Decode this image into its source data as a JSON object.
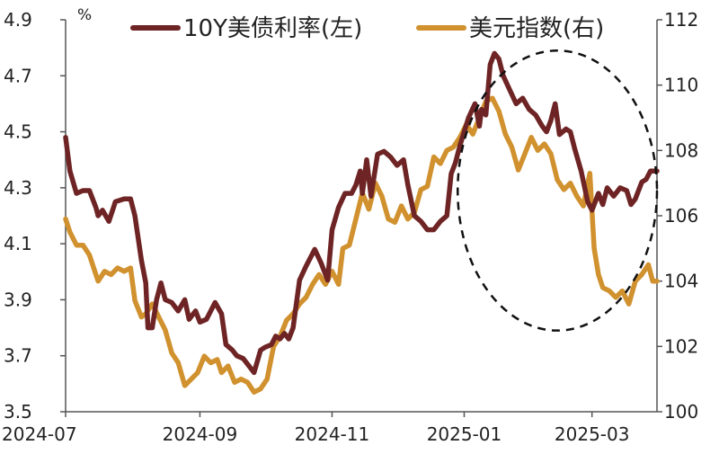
{
  "chart_data": {
    "type": "line",
    "title": "",
    "left_axis": {
      "unit_label": "%",
      "ylim": [
        3.5,
        4.9
      ],
      "ticks": [
        "3.5",
        "3.7",
        "3.9",
        "4.1",
        "4.3",
        "4.5",
        "4.7",
        "4.9"
      ]
    },
    "right_axis": {
      "ylim": [
        100,
        112
      ],
      "ticks": [
        "100",
        "102",
        "104",
        "106",
        "108",
        "110",
        "112"
      ]
    },
    "x_axis": {
      "range": [
        "2024-07-01",
        "2025-03-31"
      ],
      "ticks": [
        {
          "label": "2024-07",
          "date": "2024-07-01"
        },
        {
          "label": "2024-09",
          "date": "2024-09-01"
        },
        {
          "label": "2024-11",
          "date": "2024-11-01"
        },
        {
          "label": "2025-01",
          "date": "2025-01-01"
        },
        {
          "label": "2025-03",
          "date": "2025-03-01"
        }
      ]
    },
    "grid": false,
    "legend": "top",
    "series": [
      {
        "name": "10Y美债利率(左)",
        "axis": "left",
        "color": "#6e2424",
        "points": [
          [
            "2024-07-01",
            4.48
          ],
          [
            "2024-07-03",
            4.36
          ],
          [
            "2024-07-06",
            4.28
          ],
          [
            "2024-07-09",
            4.29
          ],
          [
            "2024-07-12",
            4.29
          ],
          [
            "2024-07-15",
            4.23
          ],
          [
            "2024-07-16",
            4.2
          ],
          [
            "2024-07-18",
            4.22
          ],
          [
            "2024-07-21",
            4.18
          ],
          [
            "2024-07-24",
            4.25
          ],
          [
            "2024-07-28",
            4.26
          ],
          [
            "2024-07-31",
            4.26
          ],
          [
            "2024-08-02",
            4.2
          ],
          [
            "2024-08-05",
            4.04
          ],
          [
            "2024-08-07",
            3.96
          ],
          [
            "2024-08-08",
            3.8
          ],
          [
            "2024-08-10",
            3.8
          ],
          [
            "2024-08-12",
            3.9
          ],
          [
            "2024-08-14",
            3.96
          ],
          [
            "2024-08-16",
            3.9
          ],
          [
            "2024-08-19",
            3.89
          ],
          [
            "2024-08-22",
            3.86
          ],
          [
            "2024-08-25",
            3.9
          ],
          [
            "2024-08-27",
            3.83
          ],
          [
            "2024-08-30",
            3.86
          ],
          [
            "2024-09-01",
            3.82
          ],
          [
            "2024-09-04",
            3.83
          ],
          [
            "2024-09-06",
            3.86
          ],
          [
            "2024-09-08",
            3.89
          ],
          [
            "2024-09-11",
            3.85
          ],
          [
            "2024-09-13",
            3.74
          ],
          [
            "2024-09-16",
            3.72
          ],
          [
            "2024-09-18",
            3.7
          ],
          [
            "2024-09-21",
            3.69
          ],
          [
            "2024-09-24",
            3.66
          ],
          [
            "2024-09-26",
            3.64
          ],
          [
            "2024-09-29",
            3.72
          ],
          [
            "2024-10-01",
            3.73
          ],
          [
            "2024-10-04",
            3.74
          ],
          [
            "2024-10-06",
            3.77
          ],
          [
            "2024-10-08",
            3.76
          ],
          [
            "2024-10-10",
            3.78
          ],
          [
            "2024-10-12",
            3.76
          ],
          [
            "2024-10-14",
            3.8
          ],
          [
            "2024-10-17",
            3.97
          ],
          [
            "2024-10-20",
            4.02
          ],
          [
            "2024-10-24",
            4.08
          ],
          [
            "2024-10-27",
            4.03
          ],
          [
            "2024-10-30",
            3.97
          ],
          [
            "2024-11-01",
            4.15
          ],
          [
            "2024-11-04",
            4.23
          ],
          [
            "2024-11-07",
            4.28
          ],
          [
            "2024-11-10",
            4.28
          ],
          [
            "2024-11-12",
            4.31
          ],
          [
            "2024-11-14",
            4.36
          ],
          [
            "2024-11-15",
            4.28
          ],
          [
            "2024-11-17",
            4.4
          ],
          [
            "2024-11-19",
            4.27
          ],
          [
            "2024-11-22",
            4.42
          ],
          [
            "2024-11-25",
            4.43
          ],
          [
            "2024-11-28",
            4.41
          ],
          [
            "2024-12-01",
            4.38
          ],
          [
            "2024-12-04",
            4.4
          ],
          [
            "2024-12-06",
            4.31
          ],
          [
            "2024-12-09",
            4.2
          ],
          [
            "2024-12-12",
            4.18
          ],
          [
            "2024-12-15",
            4.15
          ],
          [
            "2024-12-18",
            4.15
          ],
          [
            "2024-12-21",
            4.18
          ],
          [
            "2024-12-24",
            4.2
          ],
          [
            "2024-12-26",
            4.35
          ],
          [
            "2024-12-28",
            4.39
          ],
          [
            "2024-12-30",
            4.45
          ],
          [
            "2025-01-01",
            4.5
          ],
          [
            "2025-01-03",
            4.55
          ],
          [
            "2025-01-06",
            4.6
          ],
          [
            "2025-01-08",
            4.52
          ],
          [
            "2025-01-09",
            4.58
          ],
          [
            "2025-01-11",
            4.56
          ],
          [
            "2025-01-13",
            4.74
          ],
          [
            "2025-01-15",
            4.78
          ],
          [
            "2025-01-17",
            4.76
          ],
          [
            "2025-01-19",
            4.7
          ],
          [
            "2025-01-22",
            4.65
          ],
          [
            "2025-01-25",
            4.6
          ],
          [
            "2025-01-28",
            4.62
          ],
          [
            "2025-01-31",
            4.58
          ],
          [
            "2025-02-03",
            4.56
          ],
          [
            "2025-02-06",
            4.52
          ],
          [
            "2025-02-08",
            4.5
          ],
          [
            "2025-02-10",
            4.54
          ],
          [
            "2025-02-12",
            4.6
          ],
          [
            "2025-02-14",
            4.49
          ],
          [
            "2025-02-17",
            4.51
          ],
          [
            "2025-02-19",
            4.5
          ],
          [
            "2025-02-21",
            4.44
          ],
          [
            "2025-02-24",
            4.36
          ],
          [
            "2025-02-27",
            4.25
          ],
          [
            "2025-03-01",
            4.22
          ],
          [
            "2025-03-04",
            4.28
          ],
          [
            "2025-03-06",
            4.24
          ],
          [
            "2025-03-08",
            4.3
          ],
          [
            "2025-03-11",
            4.27
          ],
          [
            "2025-03-14",
            4.3
          ],
          [
            "2025-03-17",
            4.29
          ],
          [
            "2025-03-19",
            4.24
          ],
          [
            "2025-03-21",
            4.26
          ],
          [
            "2025-03-24",
            4.32
          ],
          [
            "2025-03-26",
            4.33
          ],
          [
            "2025-03-28",
            4.36
          ],
          [
            "2025-03-31",
            4.36
          ]
        ]
      },
      {
        "name": "美元指数(右)",
        "axis": "right",
        "color": "#d0912e",
        "points": [
          [
            "2024-07-01",
            105.9
          ],
          [
            "2024-07-03",
            105.5
          ],
          [
            "2024-07-06",
            105.1
          ],
          [
            "2024-07-09",
            105.1
          ],
          [
            "2024-07-12",
            104.8
          ],
          [
            "2024-07-15",
            104.2
          ],
          [
            "2024-07-16",
            104.0
          ],
          [
            "2024-07-19",
            104.3
          ],
          [
            "2024-07-22",
            104.2
          ],
          [
            "2024-07-25",
            104.4
          ],
          [
            "2024-07-28",
            104.3
          ],
          [
            "2024-07-31",
            104.4
          ],
          [
            "2024-08-02",
            103.4
          ],
          [
            "2024-08-05",
            102.9
          ],
          [
            "2024-08-07",
            103.0
          ],
          [
            "2024-08-10",
            103.3
          ],
          [
            "2024-08-13",
            102.9
          ],
          [
            "2024-08-16",
            102.5
          ],
          [
            "2024-08-19",
            101.8
          ],
          [
            "2024-08-22",
            101.5
          ],
          [
            "2024-08-25",
            100.8
          ],
          [
            "2024-08-28",
            101.0
          ],
          [
            "2024-08-31",
            101.2
          ],
          [
            "2024-09-03",
            101.7
          ],
          [
            "2024-09-06",
            101.5
          ],
          [
            "2024-09-09",
            101.6
          ],
          [
            "2024-09-11",
            101.2
          ],
          [
            "2024-09-14",
            101.4
          ],
          [
            "2024-09-17",
            100.9
          ],
          [
            "2024-09-20",
            101.0
          ],
          [
            "2024-09-23",
            100.9
          ],
          [
            "2024-09-26",
            100.6
          ],
          [
            "2024-09-29",
            100.7
          ],
          [
            "2024-10-02",
            101.0
          ],
          [
            "2024-10-05",
            102.0
          ],
          [
            "2024-10-08",
            102.3
          ],
          [
            "2024-10-11",
            102.8
          ],
          [
            "2024-10-14",
            103.0
          ],
          [
            "2024-10-17",
            103.3
          ],
          [
            "2024-10-20",
            103.5
          ],
          [
            "2024-10-23",
            103.9
          ],
          [
            "2024-10-26",
            104.2
          ],
          [
            "2024-10-29",
            103.9
          ],
          [
            "2024-11-01",
            104.3
          ],
          [
            "2024-11-04",
            103.9
          ],
          [
            "2024-11-06",
            105.0
          ],
          [
            "2024-11-09",
            105.1
          ],
          [
            "2024-11-12",
            105.9
          ],
          [
            "2024-11-15",
            106.7
          ],
          [
            "2024-11-18",
            106.2
          ],
          [
            "2024-11-21",
            107.0
          ],
          [
            "2024-11-24",
            106.6
          ],
          [
            "2024-11-27",
            105.9
          ],
          [
            "2024-11-30",
            105.8
          ],
          [
            "2024-12-03",
            106.3
          ],
          [
            "2024-12-06",
            105.9
          ],
          [
            "2024-12-09",
            106.1
          ],
          [
            "2024-12-12",
            106.8
          ],
          [
            "2024-12-15",
            106.9
          ],
          [
            "2024-12-18",
            107.8
          ],
          [
            "2024-12-21",
            107.6
          ],
          [
            "2024-12-24",
            108.0
          ],
          [
            "2024-12-27",
            108.1
          ],
          [
            "2024-12-30",
            108.4
          ],
          [
            "2025-01-02",
            108.8
          ],
          [
            "2025-01-05",
            108.5
          ],
          [
            "2025-01-08",
            109.0
          ],
          [
            "2025-01-11",
            109.5
          ],
          [
            "2025-01-14",
            109.6
          ],
          [
            "2025-01-17",
            109.2
          ],
          [
            "2025-01-20",
            108.5
          ],
          [
            "2025-01-23",
            108.1
          ],
          [
            "2025-01-26",
            107.4
          ],
          [
            "2025-01-29",
            107.9
          ],
          [
            "2025-02-01",
            108.4
          ],
          [
            "2025-02-04",
            108.0
          ],
          [
            "2025-02-07",
            108.2
          ],
          [
            "2025-02-10",
            107.9
          ],
          [
            "2025-02-13",
            107.1
          ],
          [
            "2025-02-16",
            106.8
          ],
          [
            "2025-02-19",
            107.0
          ],
          [
            "2025-02-22",
            106.6
          ],
          [
            "2025-02-25",
            106.3
          ],
          [
            "2025-02-28",
            107.3
          ],
          [
            "2025-03-02",
            105.0
          ],
          [
            "2025-03-04",
            104.2
          ],
          [
            "2025-03-06",
            103.8
          ],
          [
            "2025-03-09",
            103.7
          ],
          [
            "2025-03-12",
            103.5
          ],
          [
            "2025-03-15",
            103.7
          ],
          [
            "2025-03-18",
            103.3
          ],
          [
            "2025-03-21",
            104.0
          ],
          [
            "2025-03-24",
            104.2
          ],
          [
            "2025-03-27",
            104.5
          ],
          [
            "2025-03-29",
            104.0
          ],
          [
            "2025-03-31",
            104.0
          ]
        ]
      }
    ],
    "annotations": [
      {
        "type": "dashed-ellipse",
        "x_range": [
          "2024-12-29",
          "2025-03-31"
        ],
        "y_range_left": [
          3.79,
          4.79
        ]
      }
    ]
  }
}
